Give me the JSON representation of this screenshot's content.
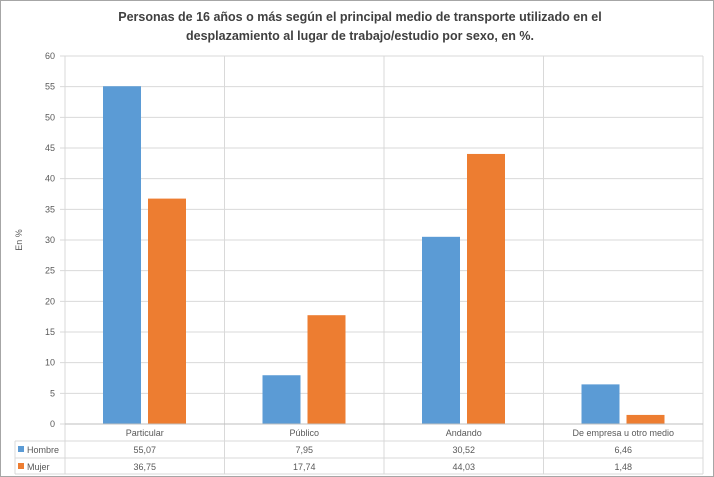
{
  "chart_data": {
    "type": "bar",
    "title": "Personas de 16 años o más según el principal medio de transporte utilizado en el desplazamiento al lugar de trabajo/estudio por sexo, en %.",
    "title_lines": [
      "Personas de 16 años o más según el principal medio de transporte utilizado en el",
      "desplazamiento al lugar de trabajo/estudio por sexo, en %."
    ],
    "ylabel": "En %",
    "xlabel": "",
    "ylim": [
      0,
      60
    ],
    "yticks": [
      0,
      5,
      10,
      15,
      20,
      25,
      30,
      35,
      40,
      45,
      50,
      55,
      60
    ],
    "grid": true,
    "legend": "data-table",
    "categories": [
      "Particular",
      "Público",
      "Andando",
      "De empresa u otro medio"
    ],
    "series": [
      {
        "name": "Hombre",
        "color": "#5b9bd5",
        "values": [
          55.07,
          7.95,
          30.52,
          6.46
        ],
        "labels": [
          "55,07",
          "7,95",
          "30,52",
          "6,46"
        ]
      },
      {
        "name": "Mujer",
        "color": "#ed7d31",
        "values": [
          36.75,
          17.74,
          44.03,
          1.48
        ],
        "labels": [
          "36,75",
          "17,74",
          "44,03",
          "1,48"
        ]
      }
    ]
  }
}
